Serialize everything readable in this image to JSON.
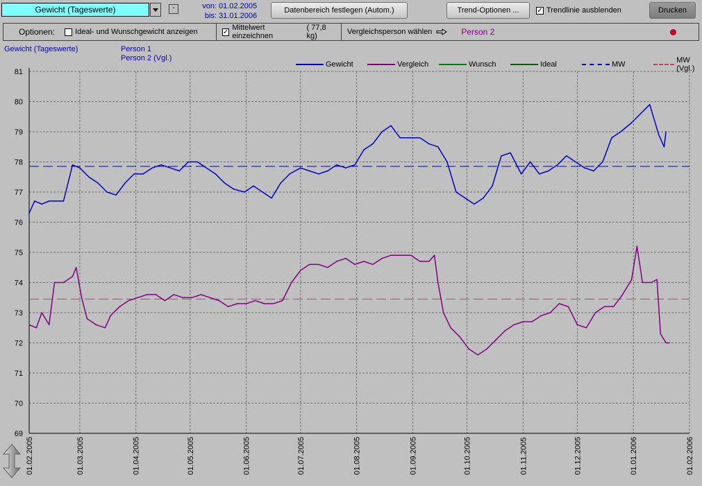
{
  "toolbar": {
    "view_select": "Gewicht (Tageswerte)",
    "minus_label": "-",
    "from_label": "von:",
    "from_date": "01.02.2005",
    "to_label": "bis:",
    "to_date": "31.01.2006",
    "range_button": "Datenbereich festlegen  (Autom.)",
    "trend_options_button": "Trend-Optionen ...",
    "trend_hide_label": "Trendlinie ausblenden",
    "trend_hide_checked": true,
    "print_button": "Drucken"
  },
  "options": {
    "label": "Optionen:",
    "ideal_label": "Ideal- und Wunschgewicht anzeigen",
    "ideal_checked": false,
    "mean_label": "Mittelwert einzeichnen",
    "mean_checked": true,
    "mean_value": "(  77,8 kg)",
    "compare_label": "Vergleichsperson wählen",
    "compare_person": "Person 2",
    "status_color": "#c0002a"
  },
  "chart_header": {
    "title": "Gewicht (Tageswerte)",
    "person1": "Person 1",
    "person2": "Person 2 (Vgl.)"
  },
  "legend": [
    {
      "label": "Gewicht",
      "color": "#0000c0",
      "dashed": false
    },
    {
      "label": "Vergleich",
      "color": "#800080",
      "dashed": false
    },
    {
      "label": "Wunsch",
      "color": "#008000",
      "dashed": false
    },
    {
      "label": "Ideal",
      "color": "#006000",
      "dashed": false
    },
    {
      "label": "MW",
      "color": "#0000c0",
      "dashed": true
    },
    {
      "label": "MW (Vgl.)",
      "color": "#c04060",
      "dashed": true
    }
  ],
  "chart_data": {
    "type": "line",
    "ylim": [
      69,
      81
    ],
    "yticks": [
      69,
      70,
      71,
      72,
      73,
      74,
      75,
      76,
      77,
      78,
      79,
      80,
      81
    ],
    "xticks": [
      "01.02.2005",
      "01.03.2005",
      "01.04.2005",
      "01.05.2005",
      "01.06.2005",
      "01.07.2005",
      "01.08.2005",
      "01.09.2005",
      "01.10.2005",
      "01.11.2005",
      "01.12.2005",
      "01.01.2006",
      "01.02.2006"
    ],
    "xlim": [
      "01.02.2005",
      "01.02.2006"
    ],
    "grid": true,
    "means": {
      "MW": 77.85,
      "MW (Vgl.)": 73.45
    },
    "series": [
      {
        "name": "Gewicht",
        "color": "#0000c0",
        "points": [
          [
            "01.02.2005",
            76.3
          ],
          [
            "04.02.2005",
            76.7
          ],
          [
            "08.02.2005",
            76.6
          ],
          [
            "12.02.2005",
            76.7
          ],
          [
            "15.02.2005",
            76.7
          ],
          [
            "20.02.2005",
            76.7
          ],
          [
            "25.02.2005",
            77.9
          ],
          [
            "01.03.2005",
            77.8
          ],
          [
            "06.03.2005",
            77.5
          ],
          [
            "11.03.2005",
            77.3
          ],
          [
            "16.03.2005",
            77.0
          ],
          [
            "21.03.2005",
            76.9
          ],
          [
            "26.03.2005",
            77.3
          ],
          [
            "31.03.2005",
            77.6
          ],
          [
            "05.04.2005",
            77.6
          ],
          [
            "10.04.2005",
            77.8
          ],
          [
            "15.04.2005",
            77.9
          ],
          [
            "20.04.2005",
            77.8
          ],
          [
            "25.04.2005",
            77.7
          ],
          [
            "30.04.2005",
            78.0
          ],
          [
            "05.05.2005",
            78.0
          ],
          [
            "10.05.2005",
            77.8
          ],
          [
            "15.05.2005",
            77.6
          ],
          [
            "20.05.2005",
            77.3
          ],
          [
            "25.05.2005",
            77.1
          ],
          [
            "31.05.2005",
            77.0
          ],
          [
            "05.06.2005",
            77.2
          ],
          [
            "10.06.2005",
            77.0
          ],
          [
            "15.06.2005",
            76.8
          ],
          [
            "20.06.2005",
            77.3
          ],
          [
            "25.06.2005",
            77.6
          ],
          [
            "01.07.2005",
            77.8
          ],
          [
            "06.07.2005",
            77.7
          ],
          [
            "11.07.2005",
            77.6
          ],
          [
            "16.07.2005",
            77.7
          ],
          [
            "21.07.2005",
            77.9
          ],
          [
            "26.07.2005",
            77.8
          ],
          [
            "31.07.2005",
            77.9
          ],
          [
            "05.08.2005",
            78.4
          ],
          [
            "10.08.2005",
            78.6
          ],
          [
            "15.08.2005",
            79.0
          ],
          [
            "20.08.2005",
            79.2
          ],
          [
            "25.08.2005",
            78.8
          ],
          [
            "31.08.2005",
            78.8
          ],
          [
            "05.09.2005",
            78.8
          ],
          [
            "10.09.2005",
            78.6
          ],
          [
            "15.09.2005",
            78.5
          ],
          [
            "20.09.2005",
            78.0
          ],
          [
            "25.09.2005",
            77.0
          ],
          [
            "30.09.2005",
            76.8
          ],
          [
            "05.10.2005",
            76.6
          ],
          [
            "10.10.2005",
            76.8
          ],
          [
            "15.10.2005",
            77.2
          ],
          [
            "20.10.2005",
            78.2
          ],
          [
            "25.10.2005",
            78.3
          ],
          [
            "31.10.2005",
            77.6
          ],
          [
            "05.11.2005",
            78.0
          ],
          [
            "10.11.2005",
            77.6
          ],
          [
            "15.11.2005",
            77.7
          ],
          [
            "20.11.2005",
            77.9
          ],
          [
            "25.11.2005",
            78.2
          ],
          [
            "30.11.2005",
            78.0
          ],
          [
            "05.12.2005",
            77.8
          ],
          [
            "10.12.2005",
            77.7
          ],
          [
            "15.12.2005",
            78.0
          ],
          [
            "20.12.2005",
            78.8
          ],
          [
            "25.12.2005",
            79.0
          ],
          [
            "31.12.2005",
            79.3
          ],
          [
            "05.01.2006",
            79.6
          ],
          [
            "10.01.2006",
            79.9
          ],
          [
            "15.01.2006",
            78.9
          ],
          [
            "18.01.2006",
            78.5
          ],
          [
            "19.01.2006",
            79.0
          ]
        ]
      },
      {
        "name": "Vergleich",
        "color": "#800080",
        "points": [
          [
            "01.02.2005",
            72.6
          ],
          [
            "05.02.2005",
            72.5
          ],
          [
            "08.02.2005",
            73.0
          ],
          [
            "12.02.2005",
            72.6
          ],
          [
            "15.02.2005",
            74.0
          ],
          [
            "20.02.2005",
            74.0
          ],
          [
            "25.02.2005",
            74.2
          ],
          [
            "27.02.2005",
            74.5
          ],
          [
            "02.03.2005",
            73.5
          ],
          [
            "05.03.2005",
            72.8
          ],
          [
            "10.03.2005",
            72.6
          ],
          [
            "15.03.2005",
            72.5
          ],
          [
            "18.03.2005",
            72.9
          ],
          [
            "23.03.2005",
            73.2
          ],
          [
            "28.03.2005",
            73.4
          ],
          [
            "02.04.2005",
            73.5
          ],
          [
            "07.04.2005",
            73.6
          ],
          [
            "12.04.2005",
            73.6
          ],
          [
            "17.04.2005",
            73.4
          ],
          [
            "22.04.2005",
            73.6
          ],
          [
            "27.04.2005",
            73.5
          ],
          [
            "02.05.2005",
            73.5
          ],
          [
            "07.05.2005",
            73.6
          ],
          [
            "12.05.2005",
            73.5
          ],
          [
            "17.05.2005",
            73.4
          ],
          [
            "22.05.2005",
            73.2
          ],
          [
            "27.05.2005",
            73.3
          ],
          [
            "01.06.2005",
            73.3
          ],
          [
            "06.06.2005",
            73.4
          ],
          [
            "11.06.2005",
            73.3
          ],
          [
            "16.06.2005",
            73.3
          ],
          [
            "21.06.2005",
            73.4
          ],
          [
            "26.06.2005",
            74.0
          ],
          [
            "01.07.2005",
            74.4
          ],
          [
            "06.07.2005",
            74.6
          ],
          [
            "11.07.2005",
            74.6
          ],
          [
            "16.07.2005",
            74.5
          ],
          [
            "21.07.2005",
            74.7
          ],
          [
            "26.07.2005",
            74.8
          ],
          [
            "31.07.2005",
            74.6
          ],
          [
            "05.08.2005",
            74.7
          ],
          [
            "10.08.2005",
            74.6
          ],
          [
            "15.08.2005",
            74.8
          ],
          [
            "20.08.2005",
            74.9
          ],
          [
            "25.08.2005",
            74.9
          ],
          [
            "31.08.2005",
            74.9
          ],
          [
            "05.09.2005",
            74.7
          ],
          [
            "10.09.2005",
            74.7
          ],
          [
            "13.09.2005",
            74.9
          ],
          [
            "15.09.2005",
            74.0
          ],
          [
            "18.09.2005",
            73.0
          ],
          [
            "22.09.2005",
            72.5
          ],
          [
            "27.09.2005",
            72.2
          ],
          [
            "02.10.2005",
            71.8
          ],
          [
            "07.10.2005",
            71.6
          ],
          [
            "12.10.2005",
            71.8
          ],
          [
            "17.10.2005",
            72.1
          ],
          [
            "22.10.2005",
            72.4
          ],
          [
            "27.10.2005",
            72.6
          ],
          [
            "01.11.2005",
            72.7
          ],
          [
            "06.11.2005",
            72.7
          ],
          [
            "11.11.2005",
            72.9
          ],
          [
            "16.11.2005",
            73.0
          ],
          [
            "21.11.2005",
            73.3
          ],
          [
            "26.11.2005",
            73.2
          ],
          [
            "01.12.2005",
            72.6
          ],
          [
            "06.12.2005",
            72.5
          ],
          [
            "11.12.2005",
            73.0
          ],
          [
            "16.12.2005",
            73.2
          ],
          [
            "21.12.2005",
            73.2
          ],
          [
            "26.12.2005",
            73.6
          ],
          [
            "31.12.2005",
            74.1
          ],
          [
            "03.01.2006",
            75.2
          ],
          [
            "06.01.2006",
            74.0
          ],
          [
            "11.01.2006",
            74.0
          ],
          [
            "14.01.2006",
            74.1
          ],
          [
            "16.01.2006",
            72.3
          ],
          [
            "19.01.2006",
            72.0
          ],
          [
            "21.01.2006",
            72.0
          ]
        ]
      }
    ]
  }
}
